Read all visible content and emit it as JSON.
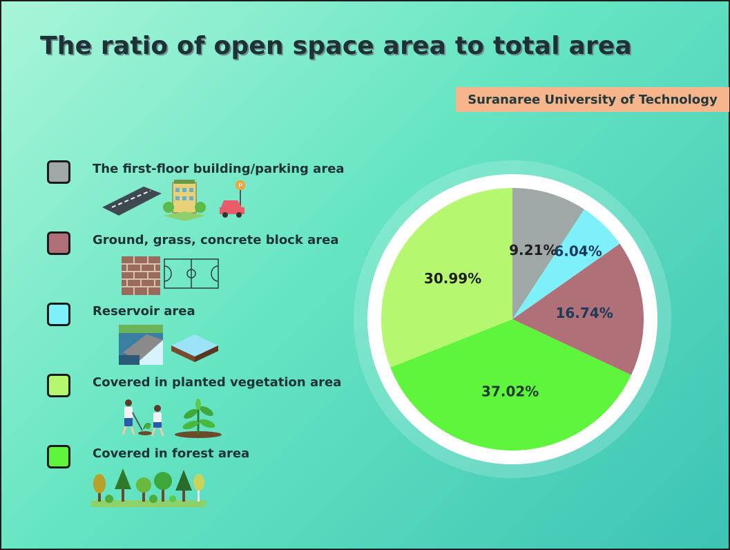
{
  "title": "The ratio of open space area to total area",
  "organization": "Suranaree University of Technology",
  "chart_data": {
    "type": "pie",
    "categories": [
      "The first-floor building/parking area",
      "Ground, grass, concrete block area",
      "Reservoir area",
      "Covered in planted vegetation area",
      "Covered in forest area"
    ],
    "slices": [
      {
        "label": "The first-floor building/parking area",
        "value": 9.21,
        "value_label": "9.21%",
        "color": "#9fa8a6",
        "text_color": "#1d1d1d"
      },
      {
        "label": "Reservoir area",
        "value": 6.04,
        "value_label": "6.04%",
        "color": "#7df0fa",
        "text_color": "#1b3a5a"
      },
      {
        "label": "Ground, grass, concrete block area",
        "value": 16.74,
        "value_label": "16.74%",
        "color": "#b07078",
        "text_color": "#1b3a5a"
      },
      {
        "label": "Covered in forest area",
        "value": 37.02,
        "value_label": "37.02%",
        "color": "#5ff53c",
        "text_color": "#1d3a30"
      },
      {
        "label": "Covered in planted vegetation area",
        "value": 30.99,
        "value_label": "30.99%",
        "color": "#b6f770",
        "text_color": "#1d1d1d"
      }
    ],
    "start_angle_deg": 0,
    "direction": "clockwise"
  },
  "legend": [
    {
      "label": "The first-floor building/parking area",
      "color": "#9fa8a6",
      "icons": [
        "road-icon",
        "building-icon",
        "parking-car-icon"
      ]
    },
    {
      "label": "Ground, grass, concrete block area",
      "color": "#b07078",
      "icons": [
        "brick-wall-icon",
        "football-field-icon"
      ]
    },
    {
      "label": "Reservoir area",
      "color": "#7df0fa",
      "icons": [
        "dam-icon",
        "water-tile-icon"
      ]
    },
    {
      "label": "Covered in planted vegetation area",
      "color": "#b6f770",
      "icons": [
        "planting-kids-icon",
        "sapling-icon"
      ]
    },
    {
      "label": "Covered in forest area",
      "color": "#5ff53c",
      "icons": [
        "forest-icon"
      ]
    }
  ]
}
